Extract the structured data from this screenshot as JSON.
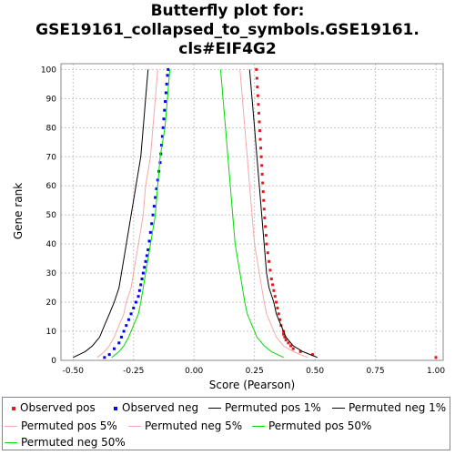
{
  "title_lines": [
    "Butterfly plot for:",
    "GSE19161_collapsed_to_symbols.GSE19161.",
    "cls#EIF4G2"
  ],
  "legend": [
    {
      "label": "Observed pos",
      "color": "#e31a1c",
      "kind": "square"
    },
    {
      "label": "Observed neg",
      "color": "#0000ff",
      "kind": "square"
    },
    {
      "label": "Permuted pos 1%",
      "color": "#000000",
      "kind": "line"
    },
    {
      "label": "Permuted neg 1%",
      "color": "#000000",
      "kind": "line"
    },
    {
      "label": "Permuted pos 5%",
      "color": "#f4a8a8",
      "kind": "line"
    },
    {
      "label": "Permuted neg 5%",
      "color": "#f4a8a8",
      "kind": "line"
    },
    {
      "label": "Permuted pos 50%",
      "color": "#00dd00",
      "kind": "line"
    },
    {
      "label": "Permuted neg 50%",
      "color": "#00dd00",
      "kind": "line"
    }
  ],
  "chart_data": {
    "type": "scatter",
    "title": "Butterfly plot for: GSE19161_collapsed_to_symbols.GSE19161.cls#EIF4G2",
    "xlabel": "Score (Pearson)",
    "ylabel": "Gene rank",
    "xlim": [
      -0.55,
      1.03
    ],
    "ylim": [
      0,
      102
    ],
    "x_ticks": [
      "-0.50",
      "-0.25",
      "0.00",
      "0.25",
      "0.50",
      "0.75",
      "1.00"
    ],
    "y_ticks": [
      "0",
      "10",
      "20",
      "30",
      "40",
      "50",
      "60",
      "70",
      "80",
      "90",
      "100"
    ],
    "grid": true,
    "series": [
      {
        "name": "Observed pos",
        "color": "#e31a1c",
        "style": "points",
        "points": [
          [
            1.0,
            1
          ],
          [
            0.49,
            2
          ],
          [
            0.44,
            3
          ],
          [
            0.41,
            4
          ],
          [
            0.4,
            5
          ],
          [
            0.39,
            6
          ],
          [
            0.38,
            7
          ],
          [
            0.375,
            8
          ],
          [
            0.37,
            9
          ],
          [
            0.37,
            10
          ],
          [
            0.36,
            12
          ],
          [
            0.355,
            14
          ],
          [
            0.35,
            16
          ],
          [
            0.345,
            18
          ],
          [
            0.34,
            20
          ],
          [
            0.335,
            22
          ],
          [
            0.33,
            24
          ],
          [
            0.325,
            26
          ],
          [
            0.32,
            28
          ],
          [
            0.315,
            31
          ],
          [
            0.31,
            34
          ],
          [
            0.305,
            37
          ],
          [
            0.3,
            40
          ],
          [
            0.298,
            43
          ],
          [
            0.295,
            46
          ],
          [
            0.292,
            49
          ],
          [
            0.29,
            52
          ],
          [
            0.288,
            55
          ],
          [
            0.286,
            58
          ],
          [
            0.284,
            61
          ],
          [
            0.282,
            64
          ],
          [
            0.28,
            67
          ],
          [
            0.278,
            70
          ],
          [
            0.276,
            73
          ],
          [
            0.274,
            76
          ],
          [
            0.272,
            79
          ],
          [
            0.27,
            82
          ],
          [
            0.268,
            85
          ],
          [
            0.266,
            88
          ],
          [
            0.264,
            91
          ],
          [
            0.262,
            94
          ],
          [
            0.26,
            97
          ],
          [
            0.258,
            100
          ]
        ]
      },
      {
        "name": "Observed neg",
        "color": "#0000ff",
        "style": "points",
        "points": [
          [
            -0.37,
            1
          ],
          [
            -0.35,
            2
          ],
          [
            -0.33,
            4
          ],
          [
            -0.31,
            6
          ],
          [
            -0.3,
            8
          ],
          [
            -0.29,
            10
          ],
          [
            -0.28,
            12
          ],
          [
            -0.27,
            14
          ],
          [
            -0.26,
            16
          ],
          [
            -0.25,
            18
          ],
          [
            -0.24,
            20
          ],
          [
            -0.23,
            22
          ],
          [
            -0.225,
            24
          ],
          [
            -0.22,
            26
          ],
          [
            -0.215,
            28
          ],
          [
            -0.21,
            30
          ],
          [
            -0.205,
            32
          ],
          [
            -0.2,
            34
          ],
          [
            -0.195,
            36
          ],
          [
            -0.19,
            38
          ],
          [
            -0.185,
            41
          ],
          [
            -0.18,
            44
          ],
          [
            -0.175,
            47
          ],
          [
            -0.17,
            50
          ],
          [
            -0.165,
            53
          ],
          [
            -0.16,
            56
          ],
          [
            -0.155,
            59
          ],
          [
            -0.15,
            62
          ],
          [
            -0.145,
            65
          ],
          [
            -0.14,
            68
          ],
          [
            -0.137,
            71
          ],
          [
            -0.134,
            74
          ],
          [
            -0.131,
            77
          ],
          [
            -0.128,
            80
          ],
          [
            -0.125,
            83
          ],
          [
            -0.122,
            86
          ],
          [
            -0.119,
            89
          ],
          [
            -0.116,
            92
          ],
          [
            -0.113,
            95
          ],
          [
            -0.11,
            98
          ],
          [
            -0.107,
            100
          ]
        ]
      },
      {
        "name": "Permuted pos 1%",
        "color": "#000000",
        "style": "line",
        "points": [
          [
            0.51,
            1
          ],
          [
            0.45,
            3
          ],
          [
            0.41,
            5
          ],
          [
            0.38,
            8
          ],
          [
            0.36,
            12
          ],
          [
            0.34,
            16
          ],
          [
            0.33,
            20
          ],
          [
            0.31,
            25
          ],
          [
            0.3,
            30
          ],
          [
            0.29,
            40
          ],
          [
            0.28,
            50
          ],
          [
            0.27,
            60
          ],
          [
            0.26,
            70
          ],
          [
            0.25,
            80
          ],
          [
            0.24,
            90
          ],
          [
            0.23,
            100
          ]
        ]
      },
      {
        "name": "Permuted neg 1%",
        "color": "#000000",
        "style": "line",
        "points": [
          [
            -0.5,
            1
          ],
          [
            -0.45,
            3
          ],
          [
            -0.42,
            5
          ],
          [
            -0.39,
            8
          ],
          [
            -0.37,
            12
          ],
          [
            -0.35,
            16
          ],
          [
            -0.33,
            20
          ],
          [
            -0.31,
            25
          ],
          [
            -0.3,
            30
          ],
          [
            -0.28,
            40
          ],
          [
            -0.26,
            50
          ],
          [
            -0.24,
            60
          ],
          [
            -0.22,
            70
          ],
          [
            -0.21,
            80
          ],
          [
            -0.2,
            90
          ],
          [
            -0.19,
            100
          ]
        ]
      },
      {
        "name": "Permuted pos 5%",
        "color": "#f4a8a8",
        "style": "line",
        "points": [
          [
            0.47,
            1
          ],
          [
            0.41,
            3
          ],
          [
            0.37,
            5
          ],
          [
            0.34,
            8
          ],
          [
            0.32,
            12
          ],
          [
            0.3,
            16
          ],
          [
            0.29,
            20
          ],
          [
            0.28,
            25
          ],
          [
            0.27,
            30
          ],
          [
            0.25,
            40
          ],
          [
            0.24,
            50
          ],
          [
            0.23,
            60
          ],
          [
            0.22,
            70
          ],
          [
            0.21,
            80
          ],
          [
            0.2,
            90
          ],
          [
            0.19,
            100
          ]
        ]
      },
      {
        "name": "Permuted neg 5%",
        "color": "#f4a8a8",
        "style": "line",
        "points": [
          [
            -0.4,
            1
          ],
          [
            -0.37,
            3
          ],
          [
            -0.35,
            5
          ],
          [
            -0.33,
            8
          ],
          [
            -0.31,
            12
          ],
          [
            -0.29,
            16
          ],
          [
            -0.28,
            20
          ],
          [
            -0.26,
            25
          ],
          [
            -0.25,
            30
          ],
          [
            -0.23,
            40
          ],
          [
            -0.21,
            50
          ],
          [
            -0.2,
            60
          ],
          [
            -0.18,
            70
          ],
          [
            -0.17,
            80
          ],
          [
            -0.16,
            90
          ],
          [
            -0.15,
            100
          ]
        ]
      },
      {
        "name": "Permuted pos 50%",
        "color": "#00dd00",
        "style": "line",
        "points": [
          [
            0.37,
            1
          ],
          [
            0.32,
            3
          ],
          [
            0.29,
            5
          ],
          [
            0.26,
            8
          ],
          [
            0.24,
            12
          ],
          [
            0.22,
            16
          ],
          [
            0.21,
            20
          ],
          [
            0.2,
            25
          ],
          [
            0.19,
            30
          ],
          [
            0.17,
            40
          ],
          [
            0.16,
            50
          ],
          [
            0.15,
            60
          ],
          [
            0.14,
            70
          ],
          [
            0.13,
            80
          ],
          [
            0.12,
            90
          ],
          [
            0.11,
            100
          ]
        ]
      },
      {
        "name": "Permuted neg 50%",
        "color": "#00dd00",
        "style": "line",
        "points": [
          [
            -0.34,
            1
          ],
          [
            -0.31,
            3
          ],
          [
            -0.29,
            5
          ],
          [
            -0.27,
            8
          ],
          [
            -0.25,
            12
          ],
          [
            -0.23,
            16
          ],
          [
            -0.22,
            20
          ],
          [
            -0.21,
            25
          ],
          [
            -0.2,
            30
          ],
          [
            -0.18,
            40
          ],
          [
            -0.16,
            50
          ],
          [
            -0.15,
            60
          ],
          [
            -0.14,
            70
          ],
          [
            -0.12,
            80
          ],
          [
            -0.11,
            90
          ],
          [
            -0.1,
            100
          ]
        ]
      }
    ]
  }
}
